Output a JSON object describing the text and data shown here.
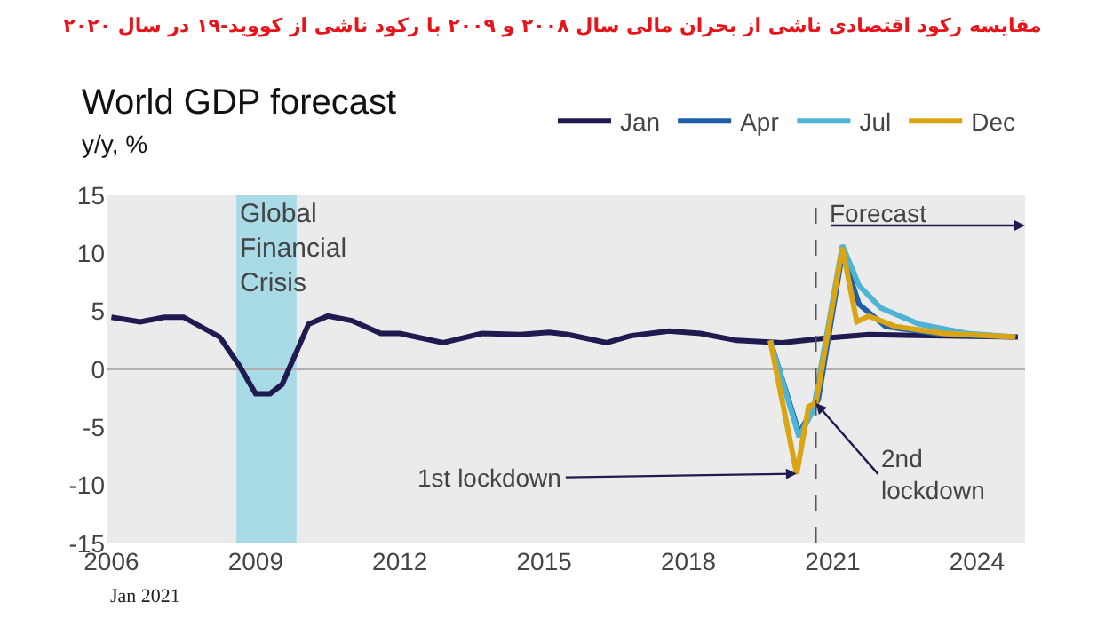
{
  "chart_data": {
    "type": "line",
    "title": "مقایسه رکود اقتصادی ناشی از بحران مالی سال ۲۰۰۸ و ۲۰۰۹ با رکود ناشی از کووید-۱۹ در سال ۲۰۲۰",
    "subtitle": "World GDP forecast",
    "ylabel": "y/y, %",
    "series": [
      {
        "name": "Jan",
        "color": "#1f1a4f",
        "x": [
          2006,
          2006.6,
          2007.1,
          2007.5,
          2008.25,
          2008.65,
          2009.0,
          2009.3,
          2009.55,
          2009.9,
          2010.1,
          2010.5,
          2011.0,
          2011.6,
          2012.0,
          2012.9,
          2013.7,
          2014.5,
          2015.1,
          2015.5,
          2016.3,
          2016.8,
          2017.6,
          2018.25,
          2019.0,
          2019.95,
          2020.85,
          2021.75,
          2024.85
        ],
        "values": [
          4.5,
          4.1,
          4.5,
          4.5,
          2.8,
          0.4,
          -2.1,
          -2.1,
          -1.3,
          2.0,
          3.9,
          4.6,
          4.2,
          3.1,
          3.1,
          2.3,
          3.1,
          3.0,
          3.2,
          3.0,
          2.3,
          2.9,
          3.3,
          3.1,
          2.5,
          2.3,
          2.7,
          3.0,
          2.8
        ]
      },
      {
        "name": "Apr",
        "color": "#1f5fa8",
        "x": [
          2019.7,
          2020.3,
          2020.7,
          2021.2,
          2021.55,
          2022.1,
          2023.3,
          2024.8
        ],
        "values": [
          2.5,
          -5.5,
          -2.6,
          10.0,
          5.6,
          3.7,
          3.0,
          2.8
        ]
      },
      {
        "name": "Jul",
        "color": "#4fb3d3",
        "x": [
          2019.7,
          2020.3,
          2020.6,
          2021.2,
          2021.55,
          2022.0,
          2022.8,
          2023.8,
          2024.8
        ],
        "values": [
          2.5,
          -5.8,
          -3.5,
          10.7,
          7.2,
          5.3,
          3.9,
          3.1,
          2.8
        ]
      },
      {
        "name": "Dec",
        "color": "#d9a514",
        "x": [
          2019.7,
          2020.25,
          2020.5,
          2020.65,
          2021.2,
          2021.5,
          2021.75,
          2022.3,
          2023.3,
          2024.8
        ],
        "values": [
          2.5,
          -9.0,
          -3.2,
          -2.9,
          10.5,
          4.1,
          4.6,
          3.7,
          3.1,
          2.8
        ]
      }
    ],
    "xlim": [
      2005.9,
      2025.0
    ],
    "xticks": [
      2006,
      2009,
      2012,
      2015,
      2018,
      2021,
      2024
    ],
    "ylim": [
      -15,
      15
    ],
    "yticks": [
      -15,
      -10,
      -5,
      0,
      5,
      10,
      15
    ],
    "bands": [
      {
        "axis": "x",
        "from": 2008.6,
        "to": 2009.85,
        "label": "Global\nFinancial\nCrisis",
        "color": "#a8dbe6"
      }
    ],
    "ref_lines": [
      {
        "axis": "x",
        "value": 2020.65,
        "label": "Forecast",
        "color": "#555555",
        "line_style": "dashed"
      },
      {
        "axis": "y",
        "value": 0,
        "color": "#b0b0b0",
        "line_style": "solid"
      }
    ],
    "annotations": [
      {
        "text": "1st lockdown",
        "x": 2020.25,
        "y": -9.0
      },
      {
        "text": "2nd\nlockdown",
        "x": 2020.65,
        "y": -2.9
      },
      "Jan 2021"
    ],
    "grid": false,
    "legend": "top",
    "marker": "none",
    "line_style": "solid"
  }
}
